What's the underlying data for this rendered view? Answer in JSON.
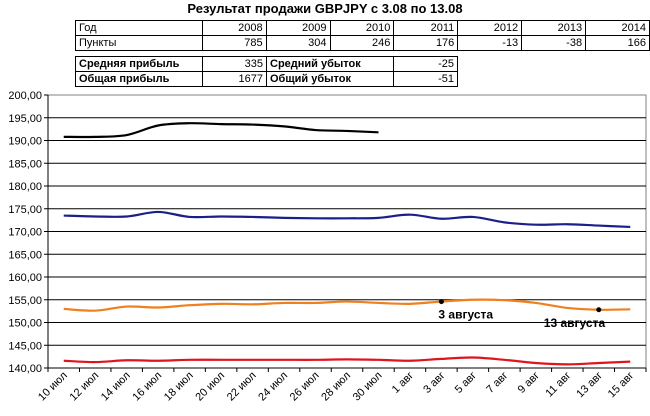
{
  "title": "Результат продажи GBPJPY с 3.08 по 13.08",
  "stats": {
    "year_label": "Год",
    "years": [
      "2008",
      "2009",
      "2010",
      "2011",
      "2012",
      "2013",
      "2014"
    ],
    "points_label": "Пункты",
    "points": [
      "785",
      "304",
      "246",
      "176",
      "-13",
      "-38",
      "166"
    ],
    "avg_profit_label": "Средняя прибыль",
    "avg_profit": "335",
    "avg_loss_label": "Средний убыток",
    "avg_loss": "-25",
    "total_profit_label": "Общая прибыль",
    "total_profit": "1677",
    "total_loss_label": "Общий убыток",
    "total_loss": "-51"
  },
  "chart_data": {
    "type": "line",
    "title": "Результат продажи GBPJPY с 3.08 по 13.08",
    "ylim": [
      140,
      200
    ],
    "yticks": [
      "140,00",
      "145,00",
      "150,00",
      "155,00",
      "160,00",
      "165,00",
      "170,00",
      "175,00",
      "180,00",
      "185,00",
      "190,00",
      "195,00",
      "200,00"
    ],
    "grid": true,
    "categories": [
      "10 июл",
      "12 июл",
      "14 июл",
      "16 июл",
      "18 июл",
      "20 июл",
      "22 июл",
      "24 июл",
      "26 июл",
      "28 июл",
      "30 июл",
      "1 авг",
      "3 авг",
      "5 авг",
      "7 авг",
      "9 авг",
      "11 авг",
      "13 авг",
      "15 авг"
    ],
    "series": [
      {
        "color": "#000000",
        "values": [
          190.8,
          190.8,
          191.2,
          193.3,
          193.8,
          193.6,
          193.5,
          193.1,
          192.3,
          192.1,
          191.8,
          null,
          null,
          null,
          null,
          null,
          null,
          null,
          null
        ]
      },
      {
        "color": "#1b1f8a",
        "values": [
          173.5,
          173.3,
          173.3,
          174.3,
          173.2,
          173.3,
          173.2,
          173.0,
          172.9,
          172.9,
          173.0,
          173.7,
          172.8,
          173.2,
          172.0,
          171.5,
          171.6,
          171.3,
          171.0
        ]
      },
      {
        "color": "#f07f1e",
        "values": [
          153.0,
          152.6,
          153.5,
          153.3,
          153.8,
          154.1,
          154.0,
          154.3,
          154.3,
          154.6,
          154.3,
          154.1,
          154.6,
          155.0,
          154.9,
          154.3,
          153.2,
          152.8,
          152.9
        ]
      },
      {
        "color": "#e0141e",
        "values": [
          141.6,
          141.3,
          141.7,
          141.6,
          141.8,
          141.8,
          141.8,
          141.8,
          141.8,
          141.9,
          141.8,
          141.6,
          142.0,
          142.3,
          141.8,
          141.1,
          140.8,
          141.1,
          141.4
        ]
      }
    ],
    "annotations": [
      {
        "label": "3 августа",
        "x": "3 авг",
        "y": 154.6
      },
      {
        "label": "13 августа",
        "x": "13 авг",
        "y": 152.8
      }
    ]
  }
}
